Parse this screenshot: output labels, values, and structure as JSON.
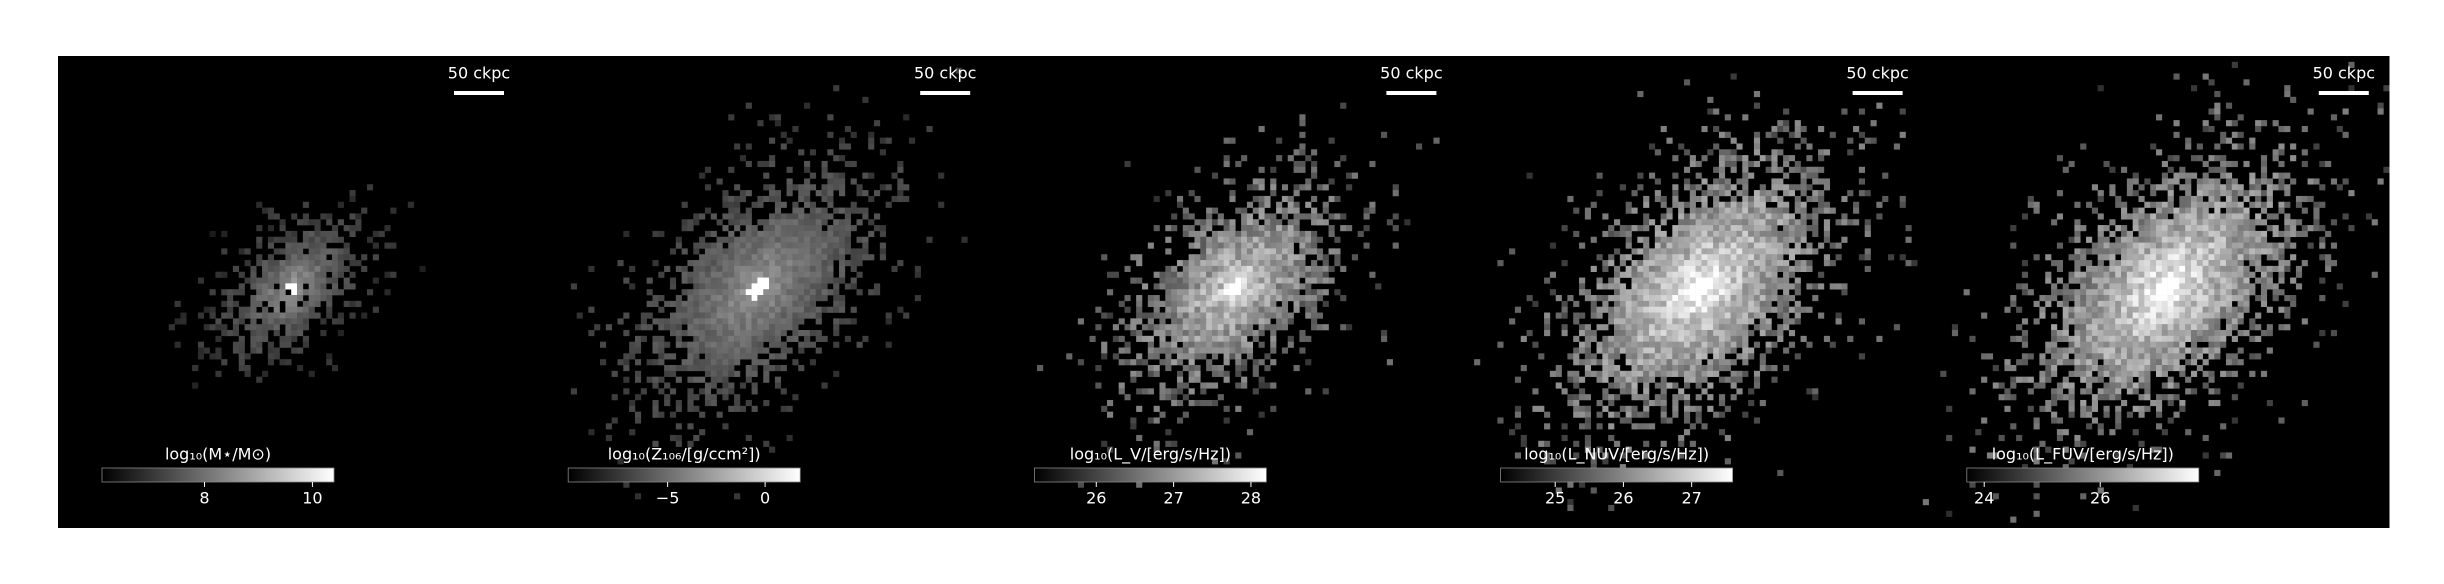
{
  "panels": [
    {
      "scalebar": "50 ckpc",
      "colorbar": {
        "label": "log₁₀(M⋆/M⊙)",
        "clim": [
          6.1,
          10.4
        ],
        "ticks": [
          8,
          10
        ]
      }
    },
    {
      "scalebar": "50 ckpc",
      "colorbar": {
        "label": "log₁₀(Z₁₀₆/[g/ccm²])",
        "clim": [
          -10.1,
          1.8
        ],
        "ticks": [
          {
            "value": -5,
            "label": "−5"
          },
          0
        ]
      }
    },
    {
      "scalebar": "50 ckpc",
      "colorbar": {
        "label": "log₁₀(L_V/[erg/s/Hz])",
        "clim": [
          25.2,
          28.2
        ],
        "ticks": [
          26,
          27,
          28
        ]
      }
    },
    {
      "scalebar": "50 ckpc",
      "colorbar": {
        "label": "log₁₀(L_NUV/[erg/s/Hz])",
        "clim": [
          24.2,
          27.6
        ],
        "ticks": [
          25,
          26,
          27
        ]
      }
    },
    {
      "scalebar": "50 ckpc",
      "colorbar": {
        "label": "log₁₀(L_FUV/[erg/s/Hz])",
        "clim": [
          23.7,
          27.7
        ],
        "ticks": [
          24,
          26
        ]
      }
    }
  ]
}
